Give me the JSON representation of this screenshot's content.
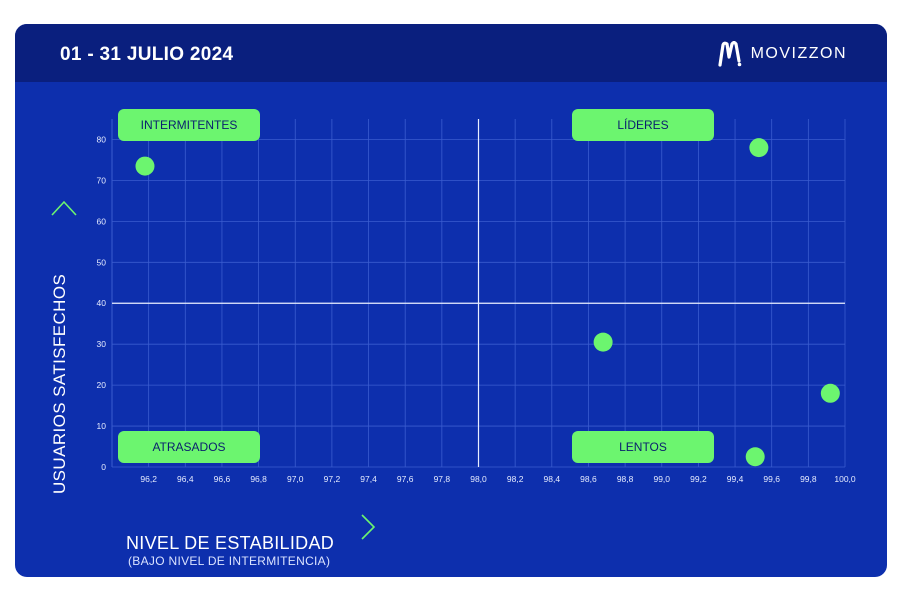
{
  "header": {
    "period": "01 - 31 JULIO 2024",
    "brand": "MOVIZZON",
    "logo_icon": "movizzon-logo-icon"
  },
  "axes": {
    "ylabel": "USUARIOS SATISFECHOS",
    "xlabel": "NIVEL DE ESTABILIDAD",
    "xsublabel": "(BAJO NIVEL DE INTERMITENCIA)",
    "y_arrow_icon": "chevron-up-icon",
    "x_arrow_icon": "chevron-right-icon"
  },
  "colors": {
    "background": "#0d2fad",
    "header": "#0a1f7e",
    "accent": "#6cf56f",
    "grid": "#3a5ccf"
  },
  "chart_data": {
    "type": "scatter",
    "quadrants": {
      "top_left": "INTERMITENTES",
      "top_right": "LÍDERES",
      "bottom_left": "ATRASADOS",
      "bottom_right": "LENTOS"
    },
    "xlim": [
      96.0,
      100.0
    ],
    "ylim": [
      0,
      85
    ],
    "x_dividers": [
      98.0
    ],
    "y_dividers": [
      40
    ],
    "x_ticks": [
      "96,2",
      "96,4",
      "96,6",
      "96,8",
      "97,0",
      "97,2",
      "97,4",
      "97,6",
      "97,8",
      "98,0",
      "98,2",
      "98,4",
      "98,6",
      "98,8",
      "99,0",
      "99,2",
      "99,4",
      "99,6",
      "99,8",
      "100,0"
    ],
    "y_ticks": [
      "0",
      "10",
      "20",
      "30",
      "40",
      "50",
      "60",
      "70",
      "80"
    ],
    "points": [
      {
        "x": 96.18,
        "y": 73.5
      },
      {
        "x": 99.53,
        "y": 78
      },
      {
        "x": 98.68,
        "y": 30.5
      },
      {
        "x": 99.92,
        "y": 18
      },
      {
        "x": 99.51,
        "y": 2.5
      }
    ],
    "grid": true
  }
}
